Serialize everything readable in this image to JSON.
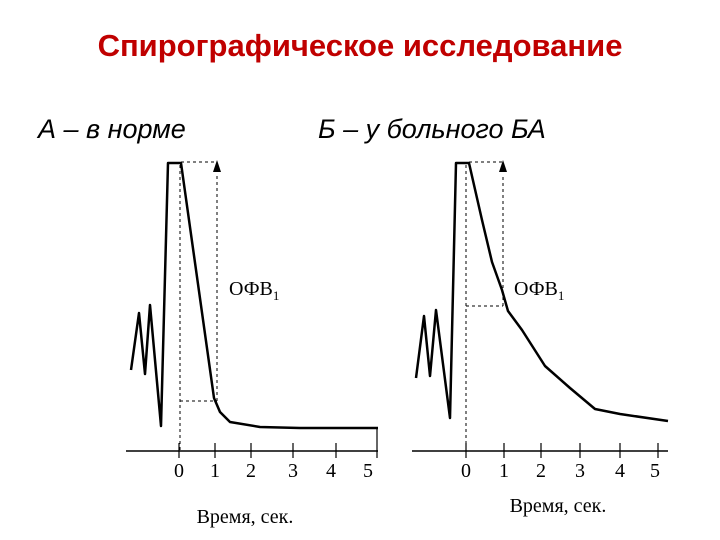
{
  "title": "Спирографическое исследование",
  "captions": {
    "normal": "А – в норме",
    "asthma": "Б – у больного БА"
  },
  "volume_label_main": "ОФВ",
  "volume_label_sub": "1",
  "time_axis": {
    "ticks": [
      "0",
      "1",
      "2",
      "3",
      "4",
      "5"
    ],
    "label": "Время, сек."
  },
  "colors": {
    "title": "#c00000",
    "line": "#000000"
  }
}
